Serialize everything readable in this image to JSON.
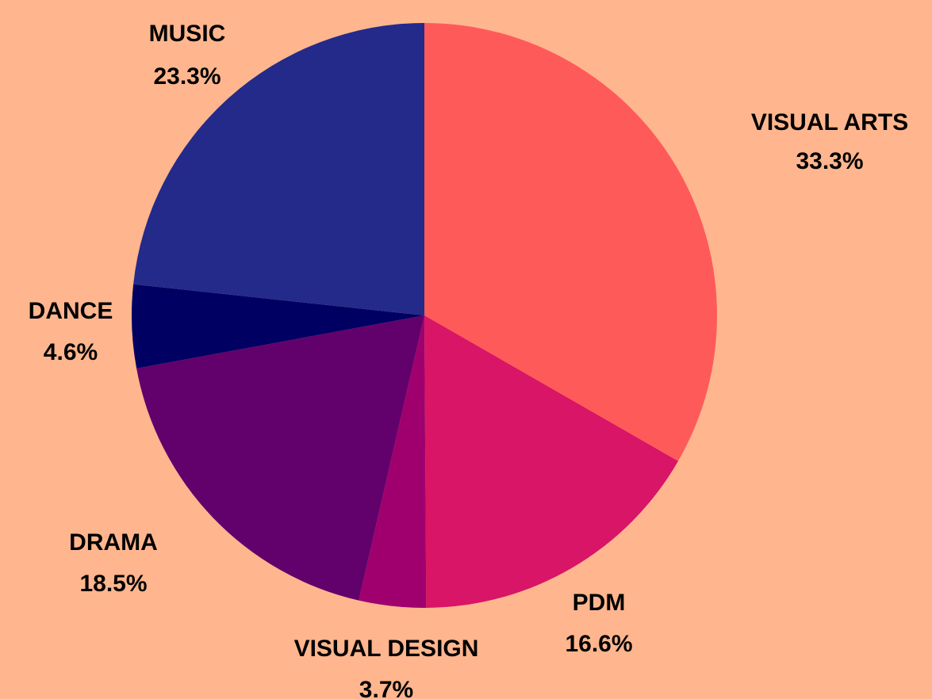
{
  "chart_data": {
    "type": "pie",
    "title": "",
    "slices": [
      {
        "label": "VISUAL ARTS",
        "value": 33.3,
        "value_label": "33.3%",
        "color": "#FF5A5A"
      },
      {
        "label": "PDM",
        "value": 16.6,
        "value_label": "16.6%",
        "color": "#D81566"
      },
      {
        "label": "VISUAL DESIGN",
        "value": 3.7,
        "value_label": "3.7%",
        "color": "#A0006E"
      },
      {
        "label": "DRAMA",
        "value": 18.5,
        "value_label": "18.5%",
        "color": "#62006C"
      },
      {
        "label": "DANCE",
        "value": 4.6,
        "value_label": "4.6%",
        "color": "#000062"
      },
      {
        "label": "MUSIC",
        "value": 23.3,
        "value_label": "23.3%",
        "color": "#232A8A"
      }
    ],
    "start_angle": "12 o'clock",
    "direction": "clockwise",
    "legend": "none",
    "background_color": "#FFB68E"
  }
}
